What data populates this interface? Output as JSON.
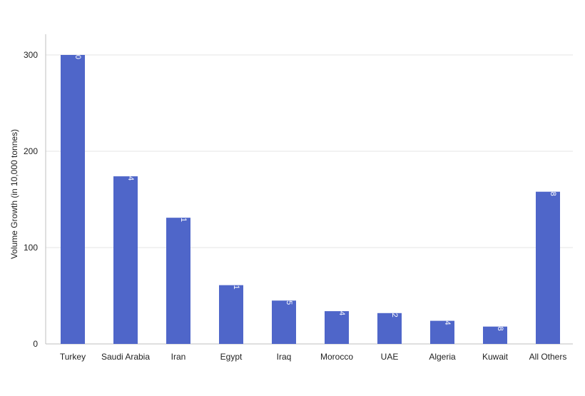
{
  "chart_data": {
    "type": "bar",
    "title": "",
    "xlabel": "",
    "ylabel": "Volume Growth (in 10,000 tonnes)",
    "categories": [
      "Turkey",
      "Saudi Arabia",
      "Iran",
      "Egypt",
      "Iraq",
      "Morocco",
      "UAE",
      "Algeria",
      "Kuwait",
      "All Others"
    ],
    "values": [
      300,
      174,
      131,
      61,
      45,
      34,
      32,
      24,
      18,
      158
    ],
    "data_labels": [
      "300",
      "174",
      "131",
      "61",
      "45",
      "34",
      "32",
      "24",
      "18",
      "158"
    ],
    "yticks": [
      0,
      100,
      200,
      300
    ],
    "ylim": [
      0,
      320
    ],
    "grid": true,
    "legend": "none",
    "bar_color": "#4F66C9"
  }
}
